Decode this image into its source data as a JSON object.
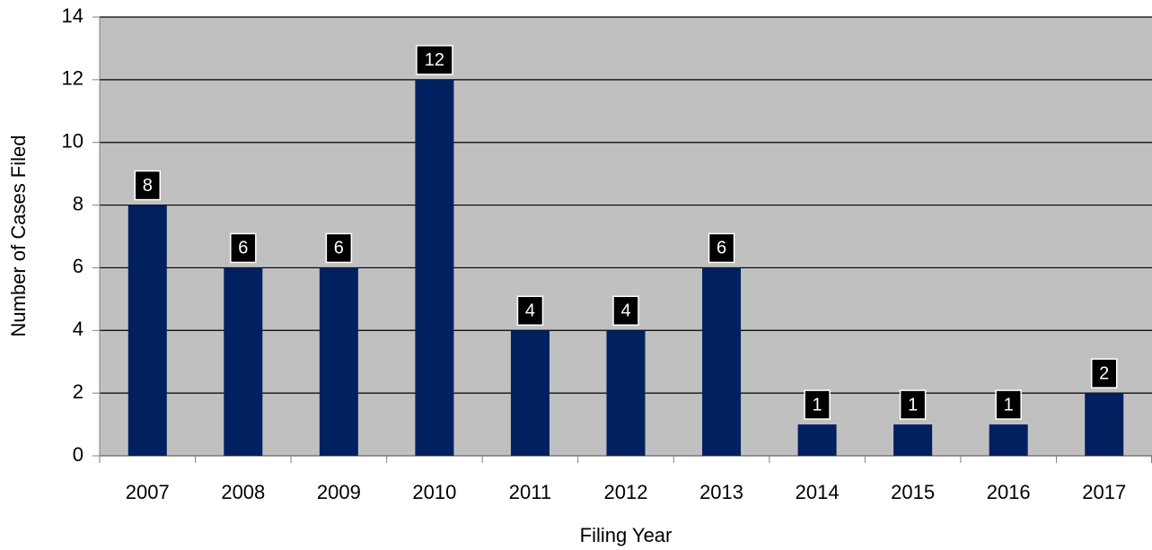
{
  "chart_data": {
    "type": "bar",
    "x_label": "Filing Year",
    "y_label": "Number of Cases Filed",
    "categories": [
      "2007",
      "2008",
      "2009",
      "2010",
      "2011",
      "2012",
      "2013",
      "2014",
      "2015",
      "2016",
      "2017"
    ],
    "values": [
      8,
      6,
      6,
      12,
      4,
      4,
      6,
      1,
      1,
      1,
      2
    ],
    "color": "#002060",
    "ylim": [
      0,
      14
    ],
    "yticks": [
      0,
      2,
      4,
      6,
      8,
      10,
      12,
      14
    ],
    "grid": true
  }
}
